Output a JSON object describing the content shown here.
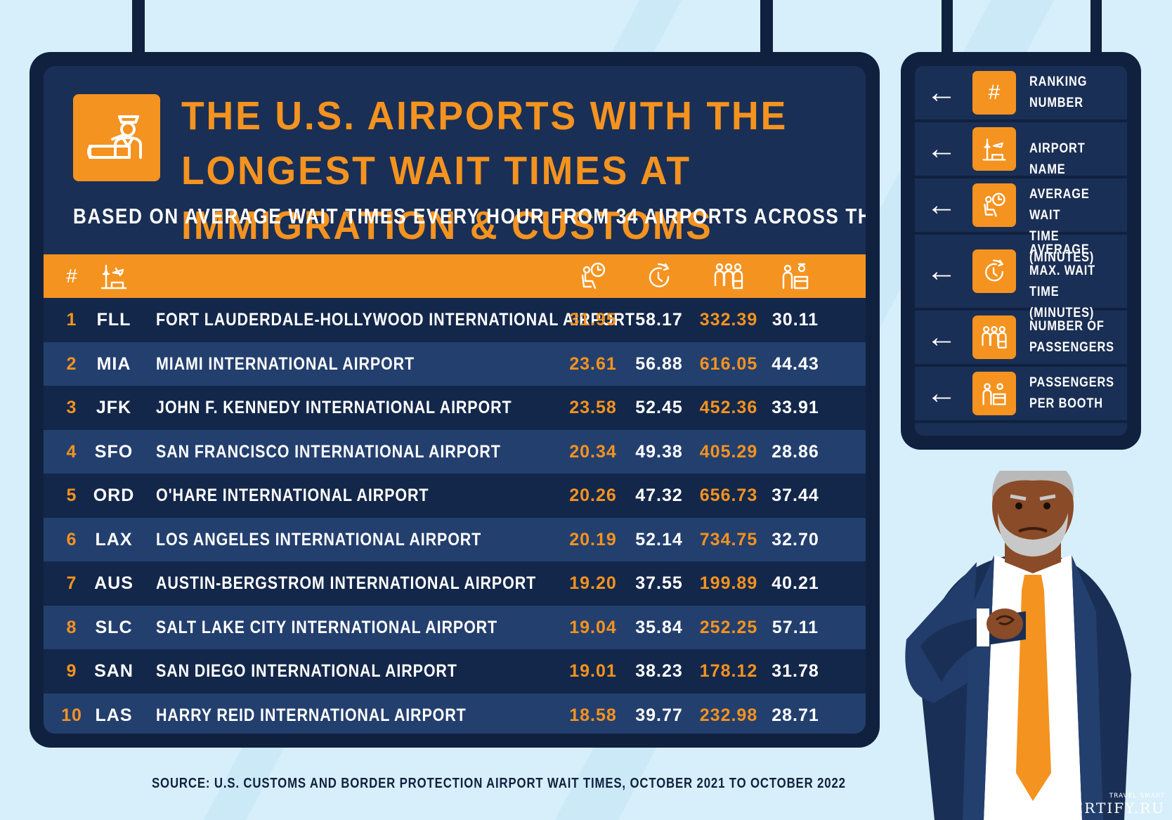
{
  "title": "THE U.S. AIRPORTS WITH THE LONGEST WAIT TIMES AT IMMIGRATION & CUSTOMS",
  "subtitle": "BASED ON AVERAGE WAIT TIMES EVERY HOUR FROM 34 AIRPORTS ACROSS THE U.S.",
  "table": {
    "header": {
      "rank_symbol": "#",
      "icons": [
        "airport-tower-icon",
        "seated-clock-icon",
        "stopwatch-icon",
        "passengers-icon",
        "booth-icon"
      ]
    },
    "rows": [
      {
        "rank": "1",
        "code": "FLL",
        "name": "FORT LAUDERDALE-HOLLYWOOD INTERNATIONAL AIRPORT",
        "avg_wait": "31.95",
        "avg_max_wait": "58.17",
        "passengers": "332.39",
        "per_booth": "30.11"
      },
      {
        "rank": "2",
        "code": "MIA",
        "name": "MIAMI INTERNATIONAL AIRPORT",
        "avg_wait": "23.61",
        "avg_max_wait": "56.88",
        "passengers": "616.05",
        "per_booth": "44.43"
      },
      {
        "rank": "3",
        "code": "JFK",
        "name": "JOHN F. KENNEDY INTERNATIONAL AIRPORT",
        "avg_wait": "23.58",
        "avg_max_wait": "52.45",
        "passengers": "452.36",
        "per_booth": "33.91"
      },
      {
        "rank": "4",
        "code": "SFO",
        "name": "SAN FRANCISCO INTERNATIONAL AIRPORT",
        "avg_wait": "20.34",
        "avg_max_wait": "49.38",
        "passengers": "405.29",
        "per_booth": "28.86"
      },
      {
        "rank": "5",
        "code": "ORD",
        "name": "O'HARE INTERNATIONAL AIRPORT",
        "avg_wait": "20.26",
        "avg_max_wait": "47.32",
        "passengers": "656.73",
        "per_booth": "37.44"
      },
      {
        "rank": "6",
        "code": "LAX",
        "name": "LOS ANGELES INTERNATIONAL AIRPORT",
        "avg_wait": "20.19",
        "avg_max_wait": "52.14",
        "passengers": "734.75",
        "per_booth": "32.70"
      },
      {
        "rank": "7",
        "code": "AUS",
        "name": "AUSTIN-BERGSTROM INTERNATIONAL AIRPORT",
        "avg_wait": "19.20",
        "avg_max_wait": "37.55",
        "passengers": "199.89",
        "per_booth": "40.21"
      },
      {
        "rank": "8",
        "code": "SLC",
        "name": "SALT LAKE CITY INTERNATIONAL AIRPORT",
        "avg_wait": "19.04",
        "avg_max_wait": "35.84",
        "passengers": "252.25",
        "per_booth": "57.11"
      },
      {
        "rank": "9",
        "code": "SAN",
        "name": "SAN DIEGO INTERNATIONAL AIRPORT",
        "avg_wait": "19.01",
        "avg_max_wait": "38.23",
        "passengers": "178.12",
        "per_booth": "31.78"
      },
      {
        "rank": "10",
        "code": "LAS",
        "name": "HARRY REID INTERNATIONAL AIRPORT",
        "avg_wait": "18.58",
        "avg_max_wait": "39.77",
        "passengers": "232.98",
        "per_booth": "28.71"
      }
    ]
  },
  "legend": [
    {
      "icon": "hash-icon",
      "symbol": "#",
      "label": "RANKING\nNUMBER"
    },
    {
      "icon": "airport-tower-icon",
      "label": "AIRPORT NAME"
    },
    {
      "icon": "seated-clock-icon",
      "label": "AVERAGE WAIT\nTIME (MINUTES)"
    },
    {
      "icon": "stopwatch-icon",
      "label": "AVERAGE\nMAX. WAIT TIME\n(MINUTES)"
    },
    {
      "icon": "passengers-icon",
      "label": "NUMBER OF\nPASSENGERS"
    },
    {
      "icon": "booth-icon",
      "label": "PASSENGERS\nPER BOOTH"
    }
  ],
  "source": "SOURCE: U.S. CUSTOMS AND BORDER PROTECTION AIRPORT WAIT TIMES, OCTOBER 2021 TO OCTOBER 2022",
  "brand": {
    "tagline": "TRAVEL SMART",
    "name": "ALERTIFY.RU"
  },
  "colors": {
    "accent": "#f4931f",
    "board": "#10213f",
    "row_dark": "#13274a",
    "row_light": "#233f6e",
    "background": "#d7effa"
  }
}
